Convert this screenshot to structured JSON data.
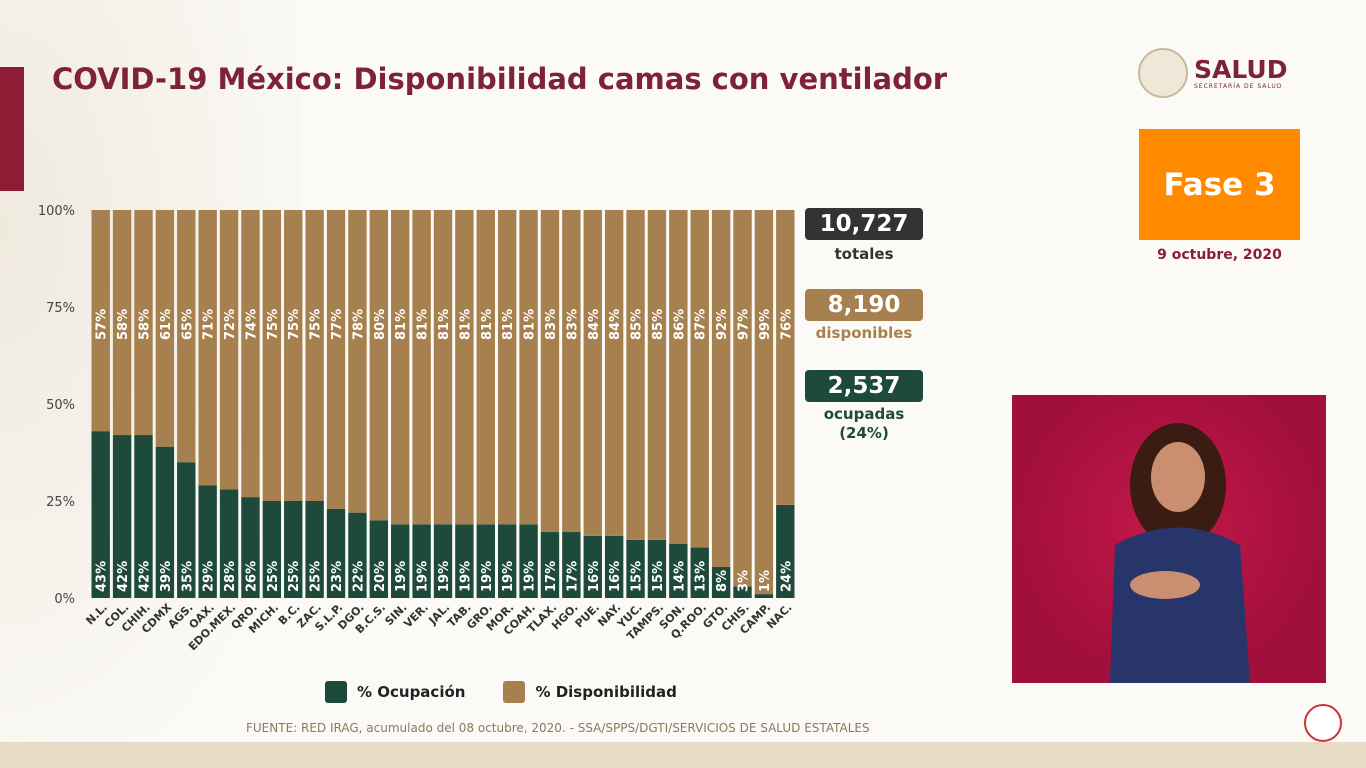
{
  "header": {
    "title": "COVID-19 México: Disponibilidad camas con ventilador",
    "logo_text": "SALUD",
    "logo_subtext": "SECRETARÍA DE SALUD"
  },
  "phase": {
    "label": "Fase 3",
    "date": "9 octubre, 2020"
  },
  "stats": {
    "total": "10,727",
    "total_label": "totales",
    "available": "8,190",
    "available_label": "disponibles",
    "occupied": "2,537",
    "occupied_label": "ocupadas",
    "occupied_pct": "(24%)"
  },
  "source": "FUENTE: RED IRAG, acumulado del 08 octubre, 2020. -  SSA/SPPS/DGTI/SERVICIOS DE SALUD ESTATALES",
  "chart_data": {
    "type": "bar",
    "stacked": true,
    "percent": true,
    "categories": [
      "N.L.",
      "COL.",
      "CHIH.",
      "CDMX",
      "AGS.",
      "OAX.",
      "EDO.MEX.",
      "QRO.",
      "MICH.",
      "B.C.",
      "ZAC.",
      "S.L.P.",
      "DGO.",
      "B.C.S.",
      "SIN.",
      "VER.",
      "JAL.",
      "TAB.",
      "GRO.",
      "MOR.",
      "COAH.",
      "TLAX.",
      "HGO.",
      "PUE.",
      "NAY.",
      "YUC.",
      "TAMPS.",
      "SON.",
      "Q.ROO.",
      "GTO.",
      "CHIS.",
      "CAMP.",
      "NAC."
    ],
    "series": [
      {
        "name": "% Ocupación",
        "color": "#1d4a3b",
        "values": [
          43,
          42,
          42,
          39,
          35,
          29,
          28,
          26,
          25,
          25,
          25,
          23,
          22,
          20,
          19,
          19,
          19,
          19,
          19,
          19,
          19,
          17,
          17,
          16,
          16,
          15,
          15,
          14,
          13,
          8,
          3,
          1,
          24
        ]
      },
      {
        "name": "% Disponibilidad",
        "color": "#a7804f",
        "values": [
          57,
          58,
          58,
          61,
          65,
          71,
          72,
          74,
          75,
          75,
          75,
          77,
          78,
          80,
          81,
          81,
          81,
          81,
          81,
          81,
          81,
          83,
          83,
          84,
          84,
          85,
          85,
          86,
          87,
          92,
          97,
          99,
          76
        ]
      }
    ],
    "yticks": [
      "0%",
      "25%",
      "50%",
      "75%",
      "100%"
    ],
    "ylim": [
      0,
      100
    ],
    "legend": "bottom"
  }
}
